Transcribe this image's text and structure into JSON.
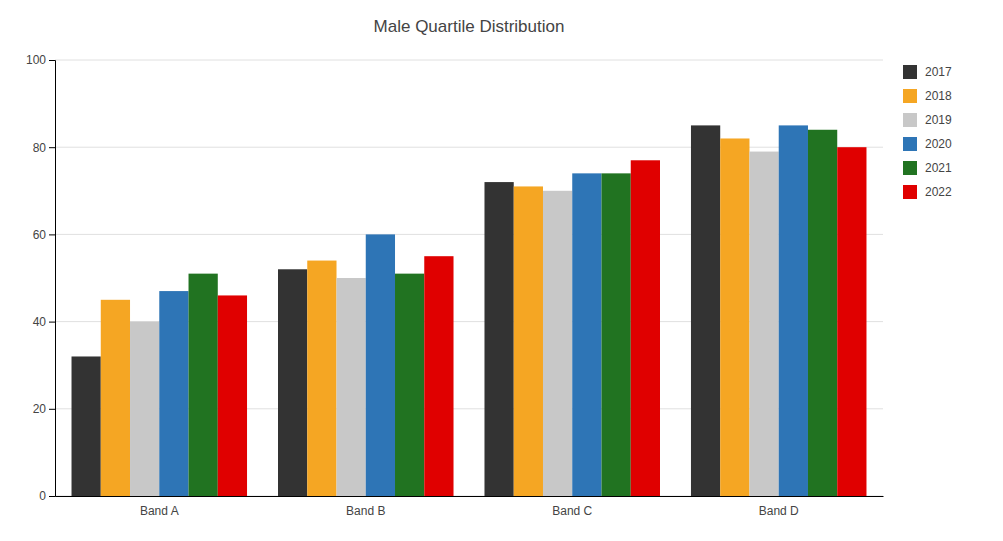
{
  "chart_data": {
    "type": "bar",
    "title": "Male Quartile Distribution",
    "categories": [
      "Band A",
      "Band B",
      "Band C",
      "Band D"
    ],
    "series": [
      {
        "name": "2017",
        "color": "#333333",
        "values": [
          32,
          52,
          72,
          85
        ]
      },
      {
        "name": "2018",
        "color": "#f5a623",
        "values": [
          45,
          54,
          71,
          82
        ]
      },
      {
        "name": "2019",
        "color": "#c8c8c8",
        "values": [
          40,
          50,
          70,
          79
        ]
      },
      {
        "name": "2020",
        "color": "#2e75b6",
        "values": [
          47,
          60,
          74,
          85
        ]
      },
      {
        "name": "2021",
        "color": "#217321",
        "values": [
          51,
          51,
          74,
          84
        ]
      },
      {
        "name": "2022",
        "color": "#e00000",
        "values": [
          46,
          55,
          77,
          80
        ]
      }
    ],
    "ylim": [
      0,
      100
    ],
    "yticks": [
      0,
      20,
      40,
      60,
      80,
      100
    ],
    "grid": true,
    "legend": "right"
  }
}
